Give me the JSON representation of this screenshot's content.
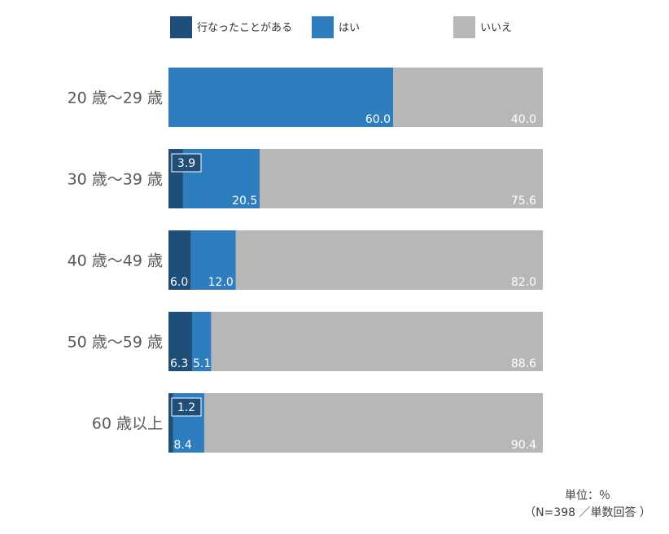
{
  "chart_data": {
    "type": "bar",
    "orientation": "horizontal",
    "stacked": true,
    "categories": [
      "20 歳～29 歳",
      "30 歳～39 歳",
      "40 歳～49 歳",
      "50 歳～59 歳",
      "60 歳以上"
    ],
    "series": [
      {
        "name": "行なったことがある",
        "color": "#1f4e79",
        "values": [
          0,
          3.9,
          6.0,
          6.3,
          1.2
        ],
        "labels": [
          "",
          "3.9",
          "6.0",
          "6.3",
          "1.2"
        ]
      },
      {
        "name": "はい",
        "color": "#2e7dbf",
        "values": [
          60.0,
          20.5,
          12.0,
          5.1,
          8.4
        ],
        "labels": [
          "60.0",
          "20.5",
          "12.0",
          "5.1",
          "8.4"
        ]
      },
      {
        "name": "いいえ",
        "color": "#b7b7b7",
        "values": [
          40.0,
          75.6,
          82.0,
          88.6,
          90.4
        ],
        "labels": [
          "40.0",
          "75.6",
          "82.0",
          "88.6",
          "90.4"
        ]
      }
    ],
    "xlim": [
      0,
      100
    ],
    "grid": false,
    "legend": "top",
    "unit_label": "単位：％",
    "note": "（N=398 ／単数回答 ）"
  }
}
